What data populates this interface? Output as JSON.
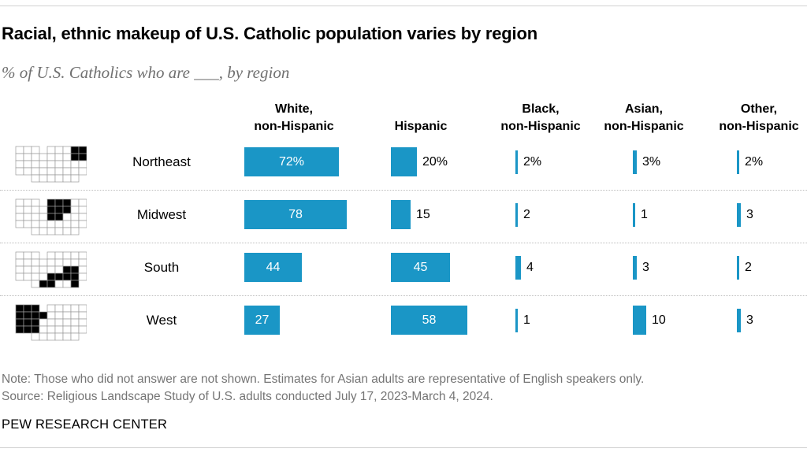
{
  "title": "Racial, ethnic makeup of U.S. Catholic population varies by region",
  "subtitle": "% of U.S. Catholics who are ___, by region",
  "note": "Note: Those who did not answer are not shown. Estimates for Asian adults are representative of English speakers only.",
  "source": "Source: Religious Landscape Study of U.S. adults conducted July 17, 2023-March 4, 2024.",
  "brand": "PEW RESEARCH CENTER",
  "colors": {
    "bar": "#1a96c6",
    "map_highlight": "#000000",
    "map_base": "#ffffff"
  },
  "chart_data": {
    "type": "bar",
    "orientation": "horizontal",
    "categories": [
      "Northeast",
      "Midwest",
      "South",
      "West"
    ],
    "series": [
      {
        "name": "White,\nnon-Hispanic",
        "values": [
          72,
          78,
          44,
          27
        ]
      },
      {
        "name": "Hispanic",
        "values": [
          20,
          15,
          45,
          58
        ]
      },
      {
        "name": "Black,\nnon-Hispanic",
        "values": [
          2,
          2,
          4,
          1
        ]
      },
      {
        "name": "Asian,\nnon-Hispanic",
        "values": [
          3,
          1,
          3,
          10
        ]
      },
      {
        "name": "Other,\nnon-Hispanic",
        "values": [
          2,
          3,
          2,
          3
        ]
      }
    ],
    "value_labels": [
      [
        "72%",
        "78",
        "44",
        "27"
      ],
      [
        "20%",
        "15",
        "45",
        "58"
      ],
      [
        "2%",
        "2",
        "4",
        "1"
      ],
      [
        "3%",
        "1",
        "3",
        "10"
      ],
      [
        "2%",
        "3",
        "2",
        "3"
      ]
    ],
    "units": "%"
  }
}
